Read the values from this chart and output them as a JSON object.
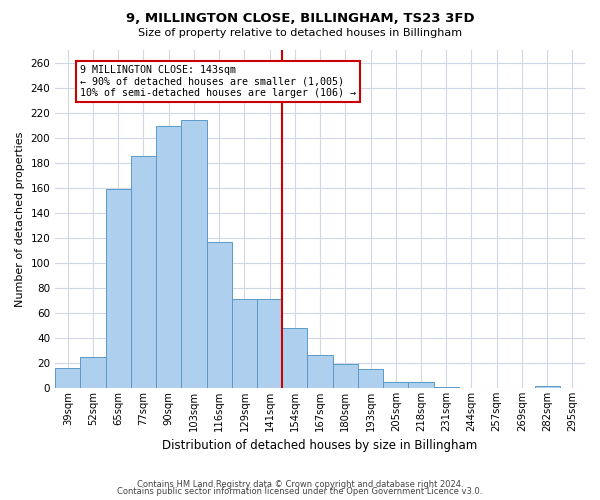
{
  "title": "9, MILLINGTON CLOSE, BILLINGHAM, TS23 3FD",
  "subtitle": "Size of property relative to detached houses in Billingham",
  "xlabel": "Distribution of detached houses by size in Billingham",
  "ylabel": "Number of detached properties",
  "bar_labels": [
    "39sqm",
    "52sqm",
    "65sqm",
    "77sqm",
    "90sqm",
    "103sqm",
    "116sqm",
    "129sqm",
    "141sqm",
    "154sqm",
    "167sqm",
    "180sqm",
    "193sqm",
    "205sqm",
    "218sqm",
    "231sqm",
    "244sqm",
    "257sqm",
    "269sqm",
    "282sqm",
    "295sqm"
  ],
  "bar_values": [
    16,
    25,
    159,
    185,
    209,
    214,
    117,
    71,
    71,
    48,
    26,
    19,
    15,
    5,
    5,
    1,
    0,
    0,
    0,
    2,
    0
  ],
  "bar_color": "#aed0ee",
  "bar_edge_color": "#5a9ac8",
  "highlight_line_color": "#cc0000",
  "annotation_text": "9 MILLINGTON CLOSE: 143sqm\n← 90% of detached houses are smaller (1,005)\n10% of semi-detached houses are larger (106) →",
  "annotation_box_color": "#ffffff",
  "annotation_box_edge_color": "#cc0000",
  "ylim": [
    0,
    270
  ],
  "yticks": [
    0,
    20,
    40,
    60,
    80,
    100,
    120,
    140,
    160,
    180,
    200,
    220,
    240,
    260
  ],
  "footer_line1": "Contains HM Land Registry data © Crown copyright and database right 2024.",
  "footer_line2": "Contains public sector information licensed under the Open Government Licence v3.0.",
  "background_color": "#ffffff",
  "grid_color": "#d0d8e8"
}
